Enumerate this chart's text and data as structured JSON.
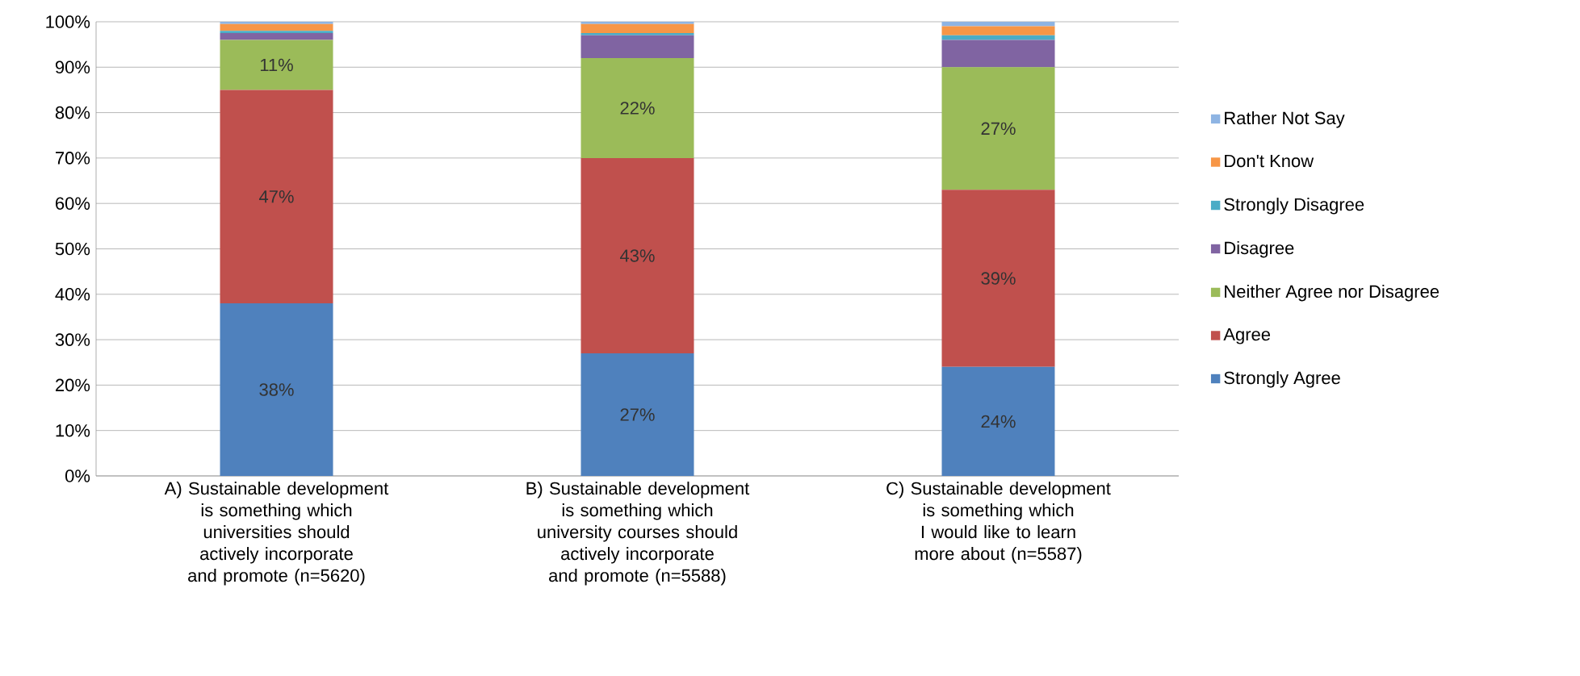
{
  "chart_data": {
    "type": "bar",
    "stacked": true,
    "categories": [
      "A) Sustainable development is something which universities should actively incorporate and promote (n=5620)",
      "B) Sustainable development is something which university courses should actively incorporate and promote (n=5588)",
      "C) Sustainable development is something which I would like to learn more about (n=5587)"
    ],
    "series": [
      {
        "name": "Strongly Agree",
        "color": "#4f81bd",
        "values": [
          38,
          27,
          24
        ],
        "value_labels": [
          "38%",
          "27%",
          "24%"
        ]
      },
      {
        "name": "Agree",
        "color": "#c0504d",
        "values": [
          47,
          43,
          39
        ],
        "value_labels": [
          "47%",
          "43%",
          "39%"
        ]
      },
      {
        "name": "Neither Agree nor Disagree",
        "color": "#9bbb59",
        "values": [
          11,
          22,
          27
        ],
        "value_labels": [
          "11%",
          "22%",
          "27%"
        ]
      },
      {
        "name": "Disagree",
        "color": "#8064a2",
        "values": [
          1.5,
          5,
          6
        ]
      },
      {
        "name": "Strongly Disagree",
        "color": "#4bacc6",
        "values": [
          0.5,
          0.5,
          1
        ]
      },
      {
        "name": "Don't Know",
        "color": "#f79646",
        "values": [
          1.5,
          2,
          2
        ]
      },
      {
        "name": "Rather Not Say",
        "color": "#8eb4e3",
        "values": [
          0.5,
          0.5,
          1
        ]
      }
    ],
    "ylim": [
      0,
      100
    ],
    "yticks": [
      {
        "value": 0,
        "label": "0%"
      },
      {
        "value": 10,
        "label": "10%"
      },
      {
        "value": 20,
        "label": "20%"
      },
      {
        "value": 30,
        "label": "30%"
      },
      {
        "value": 40,
        "label": "40%"
      },
      {
        "value": 50,
        "label": "50%"
      },
      {
        "value": 60,
        "label": "60%"
      },
      {
        "value": 70,
        "label": "70%"
      },
      {
        "value": 80,
        "label": "80%"
      },
      {
        "value": 90,
        "label": "90%"
      },
      {
        "value": 100,
        "label": "100%"
      }
    ],
    "grid": "y",
    "legend": "right"
  }
}
